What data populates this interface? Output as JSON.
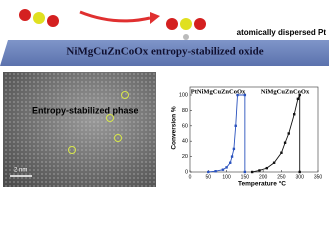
{
  "banner": {
    "pt_label": "atomically dispersed Pt",
    "oxide_label": "NiMgCuZnCoOx entropy-stabilized oxide"
  },
  "micrograph": {
    "label": "Entropy-stabilized phase",
    "scale_bar": "2 nm"
  },
  "chart_data": {
    "type": "line",
    "x_label": "Temperature °C",
    "y_label": "Conversion %",
    "xlim": [
      0,
      350
    ],
    "xticks": [
      0,
      50,
      100,
      150,
      200,
      250,
      300,
      350
    ],
    "ylim": [
      0,
      100
    ],
    "yticks": [
      0,
      20,
      40,
      60,
      80,
      100
    ],
    "series": [
      {
        "name": "PtNiMgCuZnCoOx",
        "color": "#2a52be",
        "x": [
          50,
          70,
          90,
          100,
          110,
          115,
          120,
          125,
          130,
          150,
          150
        ],
        "values": [
          0,
          1,
          3,
          6,
          12,
          20,
          30,
          60,
          100,
          100,
          0
        ]
      },
      {
        "name": "NiMgCuZnCoOx",
        "color": "#111111",
        "x": [
          170,
          190,
          210,
          230,
          250,
          260,
          270,
          285,
          295,
          300,
          300
        ],
        "values": [
          0,
          2,
          5,
          12,
          25,
          38,
          50,
          75,
          95,
          100,
          0
        ]
      }
    ]
  }
}
